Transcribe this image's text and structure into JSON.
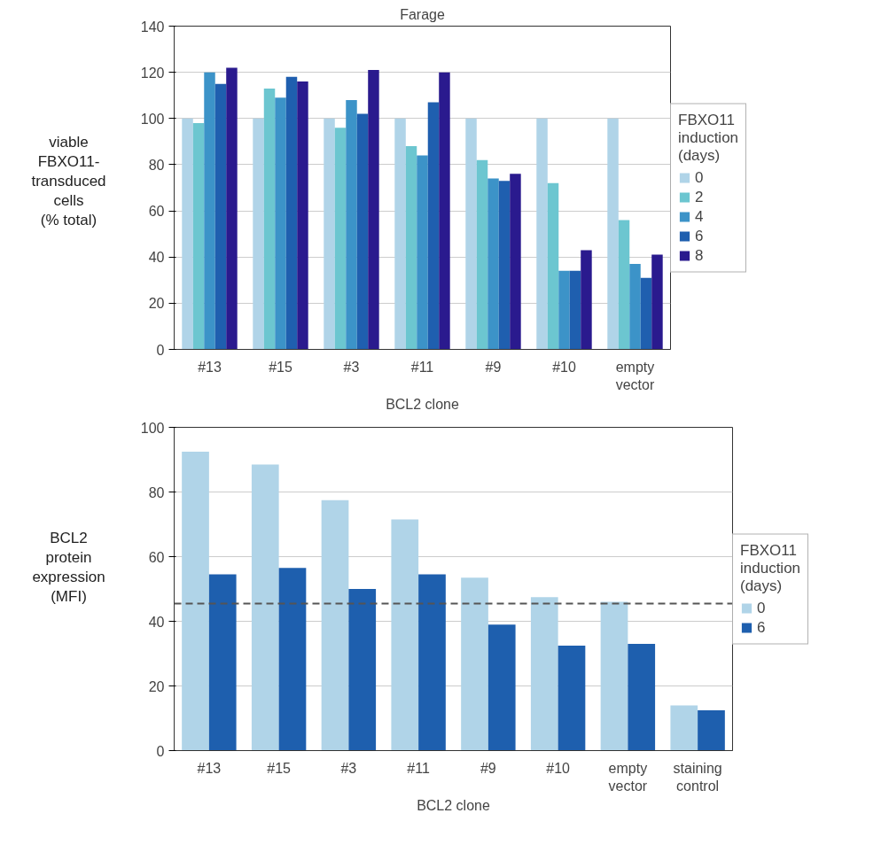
{
  "chart_data": [
    {
      "type": "bar",
      "title": "Farage",
      "xlabel": "BCL2 clone",
      "ylabel": "viable\nFBXO11-\ntransduced\ncells\n(% total)",
      "legend_title": "FBXO11\ninduction\n(days)",
      "categories": [
        "#13",
        "#15",
        "#3",
        "#11",
        "#9",
        "#10",
        "empty\nvector"
      ],
      "series": [
        {
          "name": "0",
          "color": "#b0d4e8",
          "values": [
            100,
            100,
            100,
            100,
            100,
            100,
            100
          ]
        },
        {
          "name": "2",
          "color": "#6cc6d0",
          "values": [
            98,
            113,
            96,
            88,
            82,
            72,
            56
          ]
        },
        {
          "name": "4",
          "color": "#3c93c8",
          "values": [
            120,
            109,
            108,
            84,
            74,
            34,
            37
          ]
        },
        {
          "name": "6",
          "color": "#1f5faf",
          "values": [
            115,
            118,
            102,
            107,
            73,
            34,
            31
          ]
        },
        {
          "name": "8",
          "color": "#2a1a8e",
          "values": [
            122,
            116,
            121,
            120,
            76,
            43,
            41
          ]
        }
      ],
      "ylim": [
        0,
        140
      ],
      "yticks": [
        0,
        20,
        40,
        60,
        80,
        100,
        120,
        140
      ],
      "grid": "y",
      "legend": "right"
    },
    {
      "type": "bar",
      "xlabel": "BCL2 clone",
      "ylabel": "BCL2\nprotein\nexpression\n(MFI)",
      "legend_title": "FBXO11\ninduction\n(days)",
      "categories": [
        "#13",
        "#15",
        "#3",
        "#11",
        "#9",
        "#10",
        "empty\nvector",
        "staining\ncontrol"
      ],
      "series": [
        {
          "name": "0",
          "color": "#b0d4e8",
          "values": [
            92.5,
            88.5,
            77.5,
            71.5,
            53.5,
            47.5,
            46,
            14
          ]
        },
        {
          "name": "6",
          "color": "#1e5fae",
          "values": [
            54.5,
            56.5,
            50,
            54.5,
            39,
            32.5,
            33,
            12.5
          ]
        }
      ],
      "ylim": [
        0,
        100
      ],
      "yticks": [
        0,
        20,
        40,
        60,
        80,
        100
      ],
      "grid": "y",
      "legend": "right",
      "ref_lines": [
        {
          "axis": "y",
          "value": 45.5,
          "line_style": "dashed",
          "color": "#555555"
        }
      ]
    }
  ]
}
